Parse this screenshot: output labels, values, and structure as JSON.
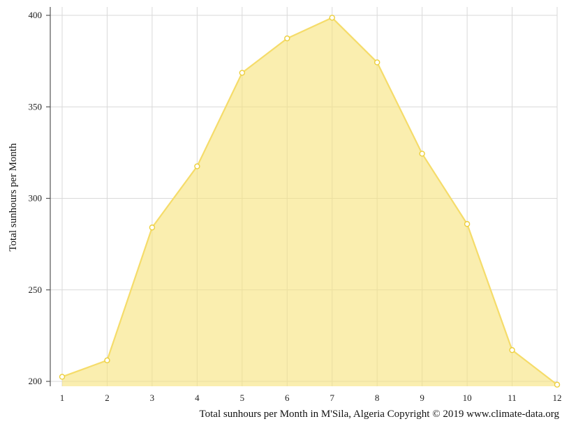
{
  "chart_data": {
    "type": "area",
    "title": "",
    "ylabel": "Total sunhours per Month",
    "caption": "Total sunhours per Month in M'Sila, Algeria Copyright © 2019 www.climate-data.org",
    "x": [
      1,
      2,
      3,
      4,
      5,
      6,
      7,
      8,
      9,
      10,
      11,
      12
    ],
    "values": [
      202.5,
      211.5,
      284.1,
      317.5,
      368.6,
      387.4,
      398.7,
      374.3,
      324.4,
      286.0,
      217.1,
      198.2
    ],
    "ylim": [
      200,
      400
    ],
    "yticks": [
      200,
      250,
      300,
      350,
      400
    ],
    "grid": true,
    "colors": {
      "fill": "#f7e27a",
      "fill_opacity": 0.6,
      "line": "#f5dc6a",
      "marker_fill": "#ffffff",
      "marker_stroke": "#eccf3c"
    }
  }
}
